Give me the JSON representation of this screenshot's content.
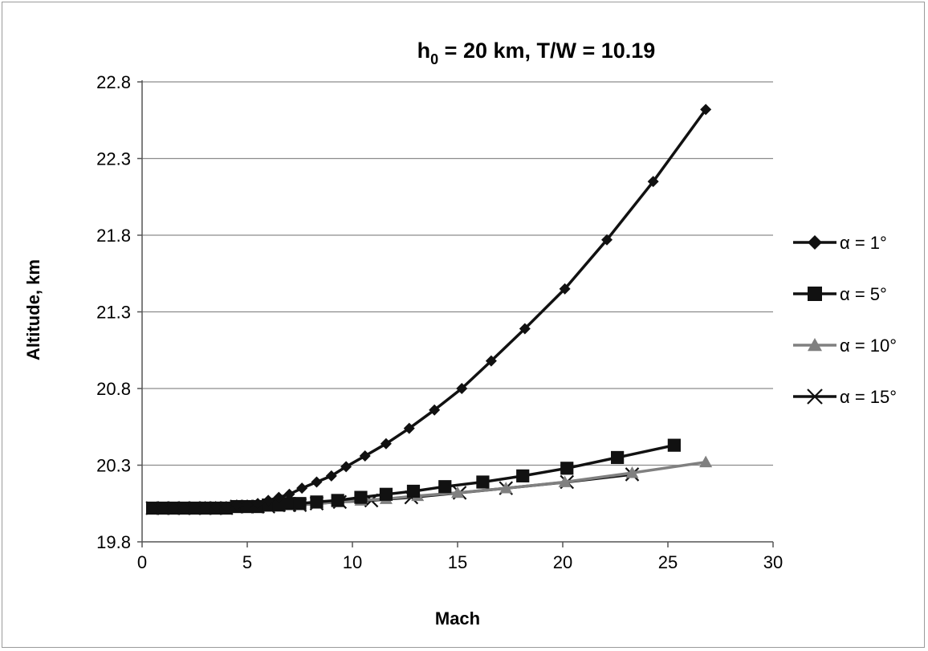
{
  "chart_data": {
    "type": "line",
    "title": "h₀ = 20 km, T/W = 10.19",
    "title_parts": {
      "main": "h",
      "subscript": "0",
      "rest": " = 20 km, T/W = 10.19"
    },
    "xlabel": "Mach",
    "ylabel": "Altitude, km",
    "xlim": [
      0,
      30
    ],
    "ylim": [
      19.8,
      22.8
    ],
    "x_ticks": [
      0,
      5,
      10,
      15,
      20,
      25,
      30
    ],
    "y_ticks": [
      19.8,
      20.3,
      20.8,
      21.3,
      21.8,
      22.3,
      22.8
    ],
    "x_tick_labels": [
      "0",
      "5",
      "10",
      "15",
      "20",
      "25",
      "30"
    ],
    "y_tick_labels": [
      "19.8",
      "20.3",
      "20.8",
      "21.3",
      "21.8",
      "22.3",
      "22.8"
    ],
    "grid": "horizontal",
    "legend_position": "right",
    "series": [
      {
        "name": "α = 1°",
        "marker": "diamond",
        "color": "#111111",
        "x": [
          0.5,
          1.0,
          1.5,
          2.0,
          2.5,
          3.0,
          3.5,
          4.0,
          4.5,
          5.0,
          5.5,
          6.0,
          6.5,
          7.0,
          7.6,
          8.3,
          9.0,
          9.7,
          10.6,
          11.6,
          12.7,
          13.9,
          15.2,
          16.6,
          18.2,
          20.1,
          22.1,
          24.3,
          26.8
        ],
        "y": [
          20.02,
          20.02,
          20.02,
          20.02,
          20.02,
          20.03,
          20.03,
          20.03,
          20.04,
          20.04,
          20.05,
          20.07,
          20.09,
          20.11,
          20.15,
          20.19,
          20.23,
          20.29,
          20.36,
          20.44,
          20.54,
          20.66,
          20.8,
          20.98,
          21.19,
          21.45,
          21.77,
          22.15,
          22.62
        ]
      },
      {
        "name": "α = 5°",
        "marker": "square",
        "color": "#111111",
        "x": [
          0.5,
          1.0,
          1.5,
          2.0,
          2.5,
          3.0,
          3.5,
          4.0,
          4.5,
          5.0,
          5.5,
          6.0,
          6.5,
          7.0,
          7.5,
          8.3,
          9.3,
          10.4,
          11.6,
          12.9,
          14.4,
          16.2,
          18.1,
          20.2,
          22.6,
          25.3
        ],
        "y": [
          20.02,
          20.02,
          20.02,
          20.02,
          20.02,
          20.02,
          20.02,
          20.02,
          20.03,
          20.03,
          20.03,
          20.04,
          20.04,
          20.05,
          20.05,
          20.06,
          20.07,
          20.09,
          20.11,
          20.13,
          20.16,
          20.19,
          20.23,
          20.28,
          20.35,
          20.43
        ]
      },
      {
        "name": "α = 10°",
        "marker": "triangle",
        "color": "#808080",
        "x": [
          0.5,
          1.0,
          1.5,
          2.0,
          2.5,
          3.0,
          3.5,
          4.0,
          4.5,
          5.0,
          5.5,
          6.0,
          6.5,
          7.0,
          7.5,
          8.3,
          9.3,
          10.4,
          11.6,
          13.1,
          15.0,
          17.3,
          20.1,
          23.3,
          26.8
        ],
        "y": [
          20.02,
          20.02,
          20.02,
          20.02,
          20.02,
          20.02,
          20.02,
          20.02,
          20.03,
          20.03,
          20.03,
          20.03,
          20.04,
          20.04,
          20.04,
          20.05,
          20.06,
          20.07,
          20.08,
          20.1,
          20.12,
          20.15,
          20.19,
          20.25,
          20.32
        ]
      },
      {
        "name": "α = 15°",
        "marker": "x",
        "color": "#111111",
        "x": [
          0.5,
          1.0,
          1.5,
          2.0,
          2.5,
          3.0,
          3.5,
          4.0,
          4.5,
          5.0,
          5.5,
          6.0,
          6.5,
          7.0,
          7.5,
          8.3,
          9.4,
          10.9,
          12.8,
          15.1,
          17.3,
          20.2,
          23.3
        ],
        "y": [
          20.02,
          20.02,
          20.02,
          20.02,
          20.02,
          20.02,
          20.02,
          20.02,
          20.03,
          20.03,
          20.03,
          20.03,
          20.04,
          20.04,
          20.04,
          20.05,
          20.06,
          20.07,
          20.09,
          20.12,
          20.15,
          20.19,
          20.24
        ]
      }
    ]
  }
}
